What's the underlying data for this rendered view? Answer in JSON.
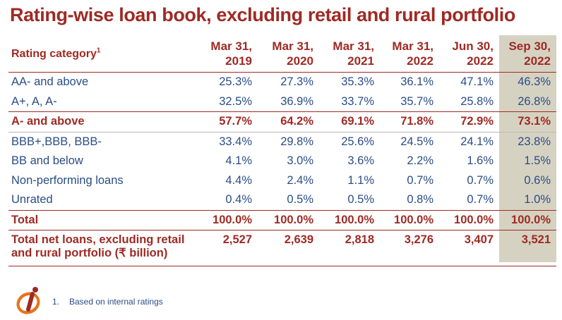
{
  "title": "Rating-wise loan book, excluding retail and rural portfolio",
  "header": {
    "category_label": "Rating category",
    "category_sup": "1",
    "periods": [
      [
        "Mar 31,",
        "2019"
      ],
      [
        "Mar 31,",
        "2020"
      ],
      [
        "Mar 31,",
        "2021"
      ],
      [
        "Mar 31,",
        "2022"
      ],
      [
        "Jun 30,",
        "2022"
      ],
      [
        "Sep 30,",
        "2022"
      ]
    ]
  },
  "rows": [
    {
      "label": "AA- and above",
      "values": [
        "25.3%",
        "27.3%",
        "35.3%",
        "36.1%",
        "47.1%",
        "46.3%"
      ]
    },
    {
      "label": "A+, A, A-",
      "values": [
        "32.5%",
        "36.9%",
        "33.7%",
        "35.7%",
        "25.8%",
        "26.8%"
      ]
    },
    {
      "label": "A- and above",
      "values": [
        "57.7%",
        "64.2%",
        "69.1%",
        "71.8%",
        "72.9%",
        "73.1%"
      ]
    },
    {
      "label": "BBB+,BBB, BBB-",
      "values": [
        "33.4%",
        "29.8%",
        "25.6%",
        "24.5%",
        "24.1%",
        "23.8%"
      ]
    },
    {
      "label": "BB and below",
      "values": [
        "4.1%",
        "3.0%",
        "3.6%",
        "2.2%",
        "1.6%",
        "1.5%"
      ]
    },
    {
      "label": "Non-performing loans",
      "values": [
        "4.4%",
        "2.4%",
        "1.1%",
        "0.7%",
        "0.7%",
        "0.6%"
      ]
    },
    {
      "label": "Unrated",
      "values": [
        "0.4%",
        "0.5%",
        "0.5%",
        "0.8%",
        "0.7%",
        "1.0%"
      ]
    },
    {
      "label": "Total",
      "values": [
        "100.0%",
        "100.0%",
        "100.0%",
        "100.0%",
        "100.0%",
        "100.0%"
      ]
    },
    {
      "label_line1": "Total net loans, excluding retail",
      "label_line2": "and rural portfolio (₹ billion)",
      "values": [
        "2,527",
        "2,639",
        "2,818",
        "3,276",
        "3,407",
        "3,521"
      ]
    }
  ],
  "footnote": {
    "number": "1.",
    "text": "Based on internal ratings"
  },
  "colors": {
    "title": "#9e2a24",
    "body_text": "#2a4d86",
    "highlight": "#d6d2c2",
    "logo": "#e8731c"
  },
  "logo": {
    "icon": "icici-bank-logo-icon"
  }
}
